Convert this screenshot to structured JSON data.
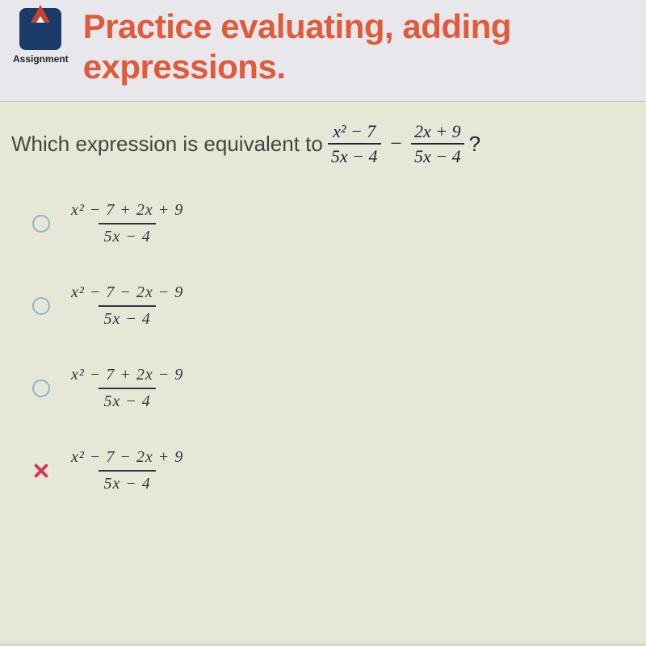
{
  "header": {
    "assignment_label": "Assignment",
    "title_line": "Practice evaluating, adding expressions."
  },
  "question": {
    "prefix": "Which expression is equivalent to",
    "frac1_num": "x² − 7",
    "frac1_den": "5x − 4",
    "operator": "−",
    "frac2_num": "2x + 9",
    "frac2_den": "5x − 4",
    "suffix": "?"
  },
  "options": [
    {
      "num": "x² − 7 + 2x + 9",
      "den": "5x − 4",
      "marked_wrong": false
    },
    {
      "num": "x² − 7 − 2x − 9",
      "den": "5x − 4",
      "marked_wrong": false
    },
    {
      "num": "x² − 7 + 2x − 9",
      "den": "5x − 4",
      "marked_wrong": false
    },
    {
      "num": "x² − 7 − 2x + 9",
      "den": "5x − 4",
      "marked_wrong": true
    }
  ],
  "colors": {
    "header_bg": "#e8e8ec",
    "title_color": "#e15a3a",
    "content_bg": "#e6e7d6",
    "logo_bg": "#1a3a6a",
    "radio_border": "#8fb5c9",
    "wrong_x": "#d23a5a"
  }
}
